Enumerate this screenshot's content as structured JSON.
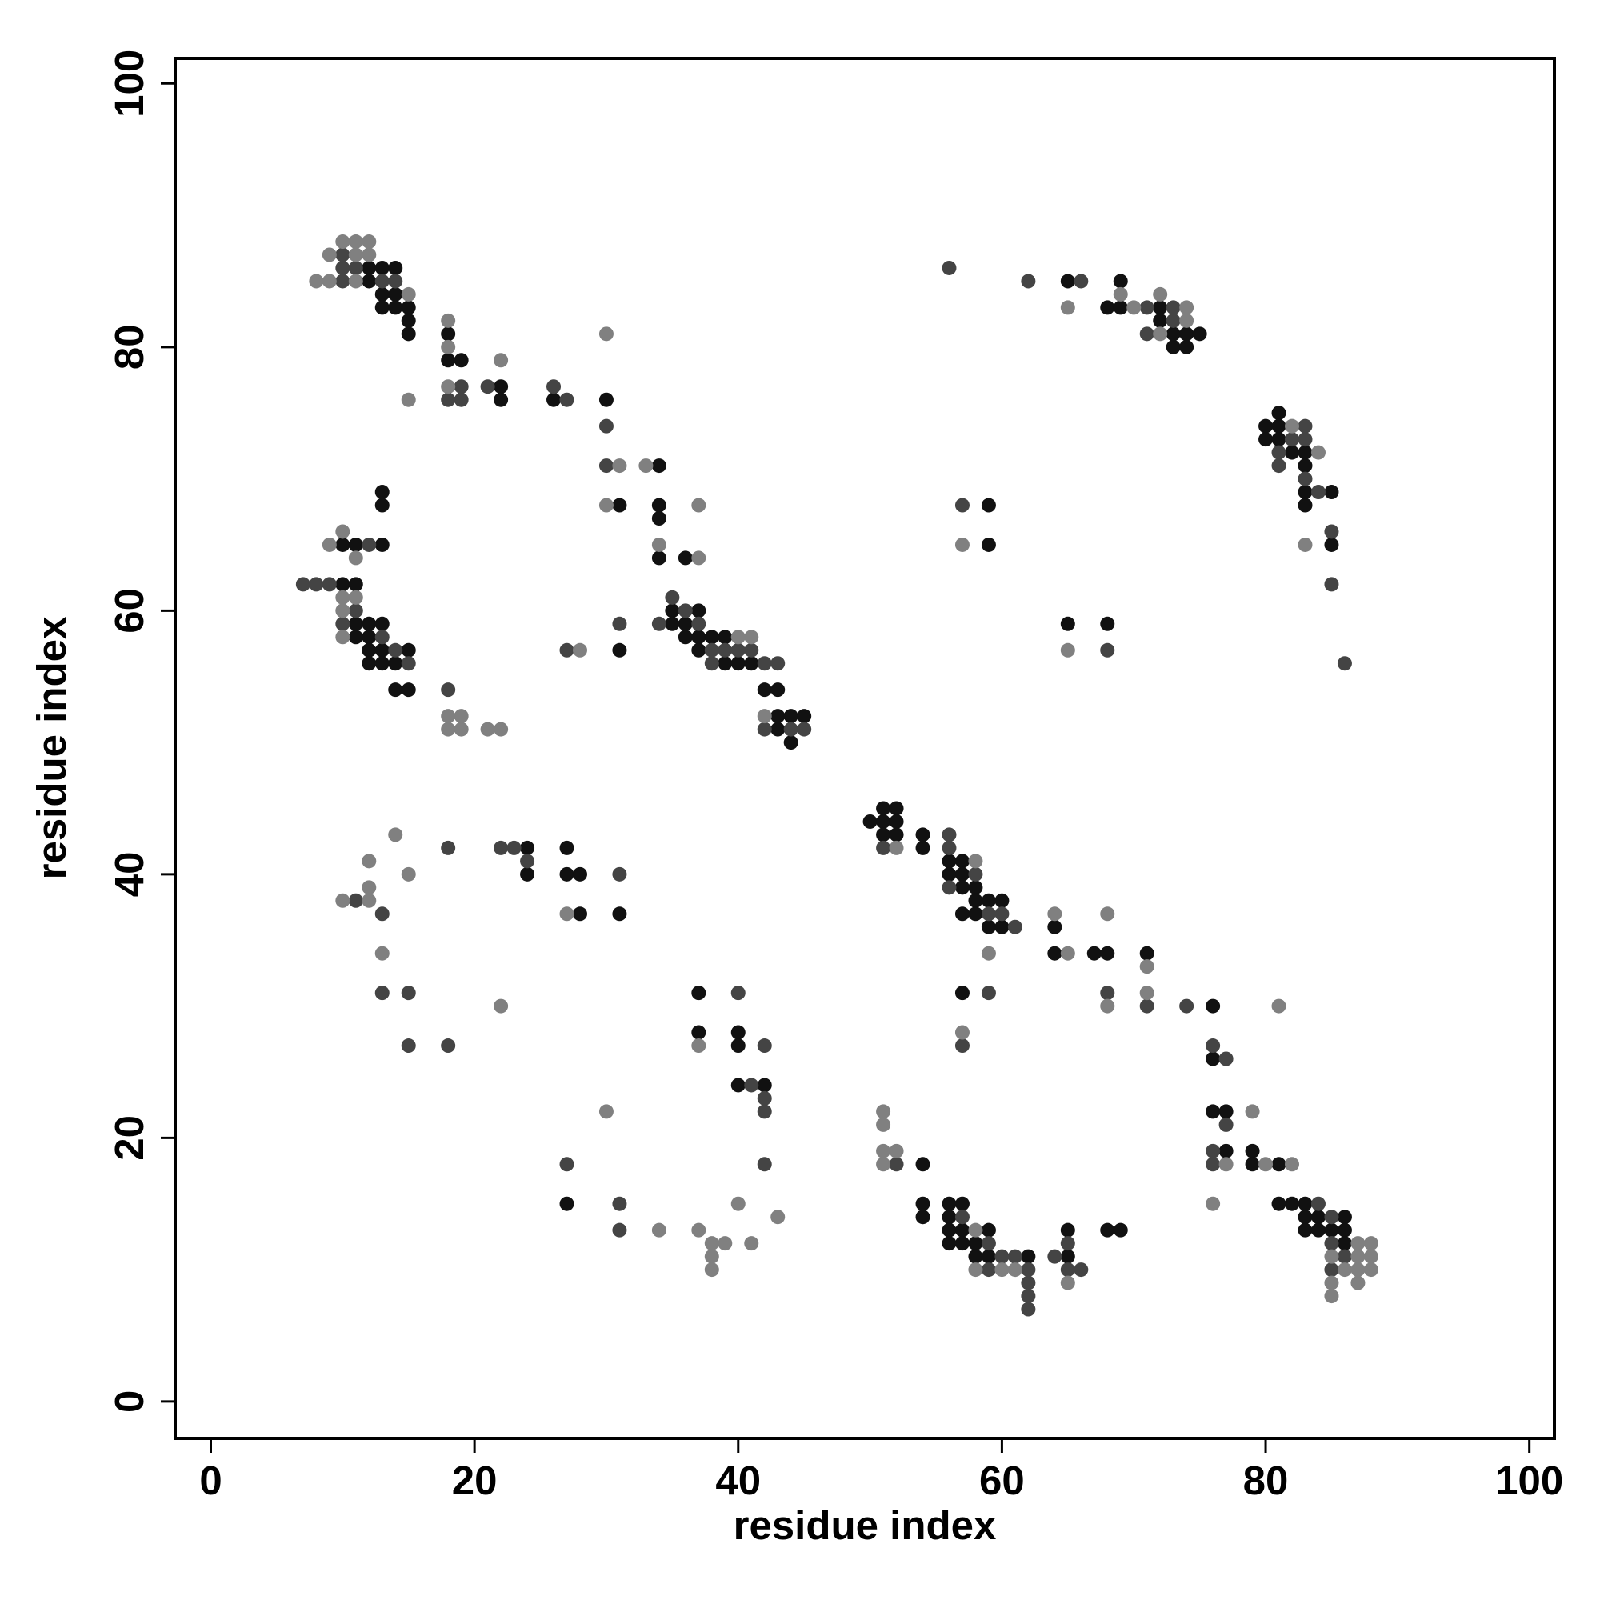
{
  "chart_data": {
    "type": "scatter",
    "x_label": "residue index",
    "y_label": "residue index",
    "xlim": [
      -2.7,
      101.9
    ],
    "ylim": [
      -2.8,
      101.9
    ],
    "xticks": [
      0,
      20,
      40,
      60,
      80,
      100
    ],
    "yticks": [
      0,
      20,
      40,
      60,
      80,
      100
    ],
    "series": [
      {
        "color": "#111111",
        "x": [
          12,
          13,
          14,
          12,
          13,
          14,
          13,
          14,
          15,
          15,
          15,
          18,
          18,
          19,
          22,
          22,
          26,
          30,
          31,
          34,
          34,
          34,
          34,
          36,
          13,
          13,
          10,
          11,
          13,
          10,
          11,
          11,
          12,
          13,
          11,
          12,
          12,
          13,
          15,
          12,
          13,
          14,
          14,
          15,
          31,
          35,
          35,
          36,
          36,
          37,
          37,
          37,
          38,
          39,
          39,
          40,
          41,
          42,
          43,
          43,
          44,
          45,
          43,
          44,
          24,
          24,
          27,
          27,
          28,
          28,
          31,
          37,
          37,
          40,
          40,
          40,
          42,
          27,
          50,
          51,
          52,
          51,
          52,
          51,
          52,
          54,
          54,
          56,
          57,
          56,
          57,
          57,
          58,
          58,
          59,
          60,
          57,
          58,
          59,
          60,
          64,
          64,
          67,
          68,
          71,
          57,
          76,
          76,
          76,
          77,
          77,
          79,
          79,
          81,
          81,
          82,
          83,
          83,
          84,
          86,
          83,
          84,
          85,
          86,
          86,
          54,
          54,
          54,
          56,
          57,
          56,
          56,
          57,
          59,
          56,
          57,
          58,
          58,
          59,
          62,
          65,
          65,
          68,
          69,
          65,
          69,
          68,
          69,
          72,
          72,
          73,
          74,
          75,
          73,
          74,
          80,
          81,
          81,
          80,
          81,
          82,
          83,
          83,
          83,
          85,
          83,
          85,
          59,
          59,
          65,
          68
        ],
        "values": [
          86,
          86,
          86,
          85,
          84,
          84,
          83,
          83,
          83,
          82,
          81,
          81,
          79,
          79,
          77,
          76,
          76,
          76,
          68,
          71,
          68,
          67,
          64,
          64,
          69,
          68,
          65,
          65,
          65,
          62,
          62,
          59,
          59,
          59,
          58,
          58,
          57,
          57,
          57,
          56,
          56,
          56,
          54,
          54,
          57,
          60,
          59,
          59,
          58,
          60,
          58,
          57,
          58,
          58,
          56,
          56,
          56,
          54,
          54,
          52,
          52,
          52,
          51,
          50,
          42,
          40,
          42,
          40,
          40,
          37,
          37,
          31,
          28,
          28,
          27,
          24,
          24,
          15,
          44,
          45,
          45,
          44,
          44,
          43,
          43,
          43,
          42,
          41,
          41,
          40,
          40,
          39,
          39,
          38,
          38,
          38,
          37,
          37,
          36,
          36,
          36,
          34,
          34,
          34,
          34,
          31,
          30,
          26,
          22,
          22,
          19,
          19,
          18,
          18,
          15,
          15,
          15,
          14,
          14,
          14,
          13,
          13,
          13,
          13,
          12,
          18,
          15,
          14,
          15,
          15,
          14,
          13,
          13,
          13,
          12,
          12,
          12,
          11,
          11,
          11,
          13,
          11,
          13,
          13,
          85,
          85,
          83,
          83,
          83,
          82,
          81,
          81,
          81,
          80,
          80,
          74,
          75,
          74,
          73,
          73,
          72,
          72,
          71,
          69,
          69,
          68,
          65,
          68,
          65,
          59,
          59
        ]
      },
      {
        "color": "#444444",
        "x": [
          10,
          10,
          11,
          10,
          13,
          14,
          19,
          18,
          19,
          21,
          26,
          27,
          30,
          30,
          12,
          7,
          8,
          9,
          11,
          10,
          13,
          14,
          15,
          18,
          27,
          31,
          34,
          35,
          36,
          37,
          38,
          38,
          39,
          40,
          41,
          42,
          43,
          42,
          44,
          45,
          18,
          22,
          23,
          24,
          31,
          11,
          13,
          13,
          15,
          15,
          18,
          40,
          42,
          41,
          42,
          42,
          42,
          27,
          31,
          31,
          51,
          56,
          56,
          58,
          56,
          59,
          60,
          61,
          59,
          68,
          71,
          74,
          57,
          76,
          77,
          77,
          76,
          76,
          84,
          85,
          85,
          86,
          85,
          52,
          57,
          59,
          60,
          61,
          59,
          62,
          62,
          62,
          62,
          64,
          65,
          65,
          66,
          56,
          62,
          66,
          71,
          73,
          73,
          71,
          83,
          82,
          83,
          81,
          81,
          83,
          84,
          85,
          85,
          86,
          57,
          68
        ],
        "values": [
          87,
          86,
          86,
          85,
          85,
          85,
          77,
          76,
          76,
          77,
          77,
          76,
          74,
          71,
          65,
          62,
          62,
          62,
          60,
          59,
          58,
          57,
          56,
          54,
          57,
          59,
          59,
          61,
          60,
          59,
          57,
          56,
          57,
          57,
          57,
          56,
          56,
          51,
          51,
          51,
          42,
          42,
          42,
          41,
          40,
          38,
          37,
          31,
          31,
          27,
          27,
          31,
          27,
          24,
          23,
          22,
          18,
          18,
          15,
          13,
          42,
          43,
          42,
          40,
          39,
          37,
          37,
          36,
          31,
          31,
          30,
          30,
          27,
          27,
          26,
          21,
          19,
          18,
          15,
          14,
          12,
          11,
          10,
          18,
          14,
          12,
          11,
          11,
          10,
          10,
          9,
          8,
          7,
          11,
          12,
          10,
          10,
          86,
          85,
          85,
          83,
          83,
          82,
          81,
          74,
          73,
          73,
          72,
          71,
          70,
          69,
          66,
          62,
          56,
          68,
          57
        ]
      },
      {
        "color": "#808080",
        "x": [
          10,
          11,
          12,
          9,
          11,
          12,
          8,
          9,
          11,
          15,
          15,
          18,
          18,
          18,
          22,
          30,
          31,
          30,
          33,
          34,
          37,
          37,
          10,
          9,
          11,
          10,
          11,
          10,
          10,
          18,
          19,
          18,
          19,
          21,
          22,
          28,
          40,
          41,
          42,
          14,
          12,
          27,
          10,
          12,
          12,
          15,
          13,
          22,
          37,
          30,
          34,
          37,
          38,
          39,
          38,
          38,
          40,
          41,
          43,
          52,
          58,
          64,
          65,
          68,
          71,
          59,
          68,
          71,
          81,
          57,
          79,
          77,
          80,
          82,
          76,
          87,
          88,
          85,
          87,
          88,
          86,
          87,
          88,
          85,
          87,
          85,
          51,
          51,
          51,
          52,
          51,
          58,
          58,
          60,
          61,
          65,
          65,
          69,
          70,
          72,
          74,
          74,
          72,
          82,
          84,
          83,
          57,
          65
        ],
        "values": [
          88,
          88,
          88,
          87,
          87,
          87,
          85,
          85,
          85,
          84,
          76,
          82,
          80,
          77,
          79,
          81,
          71,
          68,
          71,
          65,
          68,
          64,
          66,
          65,
          64,
          61,
          61,
          60,
          58,
          52,
          52,
          51,
          51,
          51,
          51,
          57,
          58,
          58,
          52,
          43,
          41,
          37,
          38,
          39,
          38,
          40,
          34,
          30,
          27,
          22,
          13,
          13,
          12,
          12,
          11,
          10,
          15,
          12,
          14,
          42,
          41,
          37,
          34,
          37,
          33,
          34,
          30,
          31,
          30,
          28,
          22,
          18,
          18,
          18,
          15,
          12,
          12,
          11,
          11,
          11,
          10,
          10,
          10,
          9,
          9,
          8,
          22,
          21,
          19,
          19,
          18,
          13,
          10,
          10,
          10,
          9,
          83,
          84,
          83,
          84,
          83,
          82,
          81,
          74,
          72,
          65,
          65,
          57
        ]
      }
    ]
  }
}
